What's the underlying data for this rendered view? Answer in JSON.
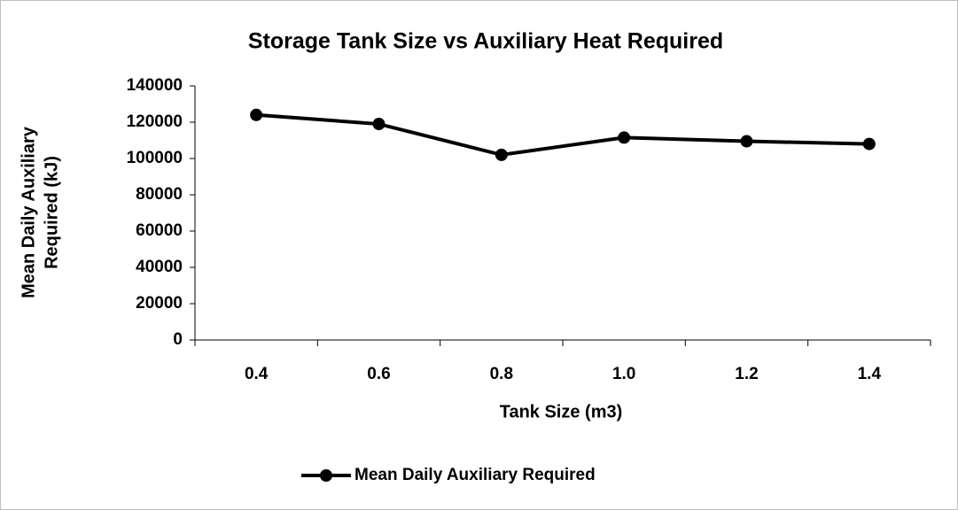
{
  "chart_data": {
    "type": "line",
    "title": "Storage Tank Size vs Auxiliary Heat Required",
    "x_label": "Tank Size (m3)",
    "y_label": [
      "Mean Daily Auxiliary",
      "Required (kJ)"
    ],
    "categories": [
      "0.4",
      "0.6",
      "0.8",
      "1.0",
      "1.2",
      "1.4"
    ],
    "series": [
      {
        "name": "Mean Daily Auxiliary Required",
        "color": "#000000",
        "values": [
          124000,
          119000,
          102000,
          111500,
          109500,
          108000
        ]
      }
    ],
    "ylim": [
      0,
      140000
    ],
    "yticks": [
      0,
      20000,
      40000,
      60000,
      80000,
      100000,
      120000,
      140000
    ],
    "grid": false,
    "legend": "bottom"
  }
}
